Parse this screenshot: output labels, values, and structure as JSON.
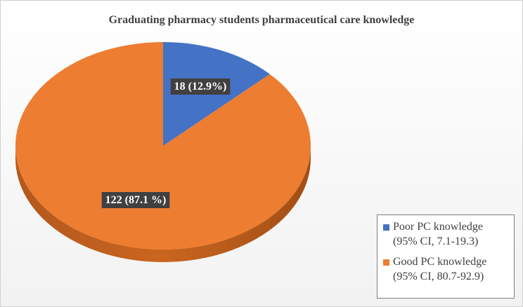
{
  "chart_data": {
    "type": "pie",
    "title": "Graduating pharmacy students pharmaceutical care knowledge",
    "slices": [
      {
        "name": "Poor PC knowledge",
        "ci": "(95% CI, 7.1-19.3)",
        "value": 18,
        "percent": 12.9,
        "label": "18 (12.9%)",
        "color": "#4472c4"
      },
      {
        "name": "Good PC knowledge",
        "ci": "(95% CI, 80.7-92.9)",
        "value": 122,
        "percent": 87.1,
        "label": "122 (87.1 %)",
        "color": "#ed7d31"
      }
    ],
    "legend_position": "bottom-right",
    "three_d": true
  }
}
